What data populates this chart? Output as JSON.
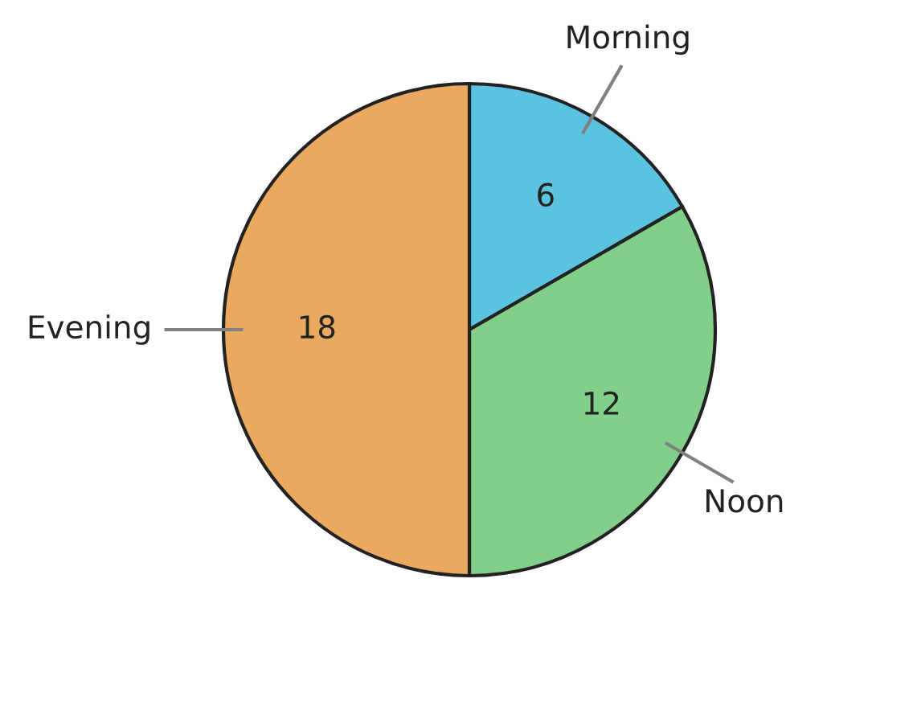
{
  "chart_data": {
    "type": "pie",
    "categories": [
      "Morning",
      "Noon",
      "Evening"
    ],
    "values": [
      6,
      12,
      18
    ],
    "colors": [
      "#5bc2e0",
      "#82cf89",
      "#eba95f"
    ],
    "data_labels": true
  }
}
